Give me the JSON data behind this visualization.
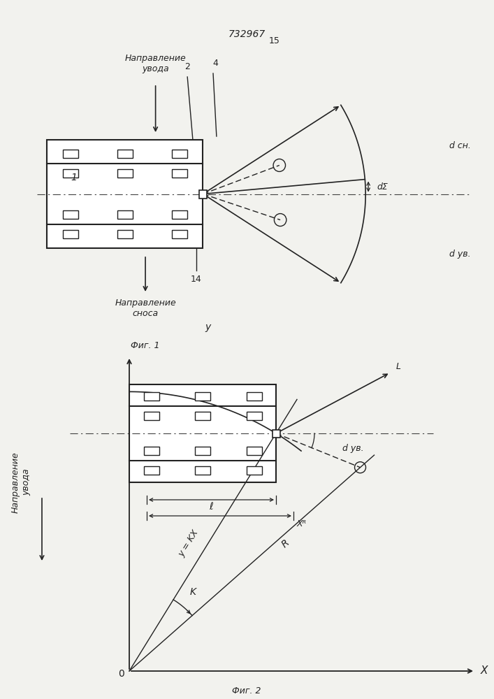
{
  "title": "732967",
  "fig1_label": "Фиг. 1",
  "fig2_label": "Фиг. 2",
  "bg_color": "#f2f2ee",
  "line_color": "#222222",
  "direction_uvoda": "Направление\nувода",
  "direction_snosa": "Направление\nсноса",
  "direction_uvoda2": "Направление\nувода"
}
